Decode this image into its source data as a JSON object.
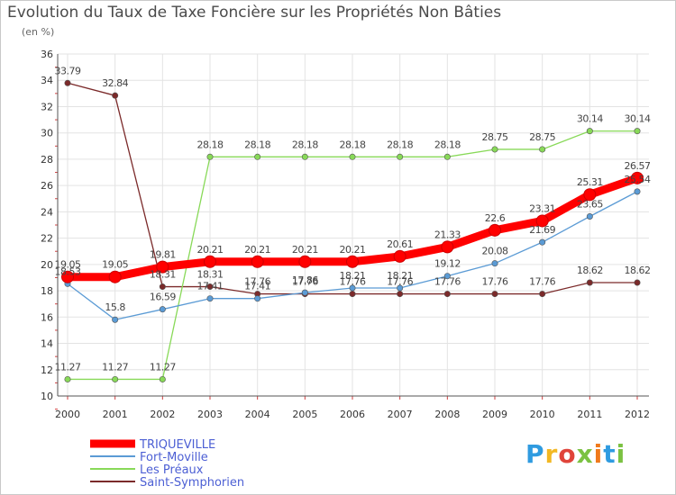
{
  "chart_data": {
    "type": "line",
    "title": "Evolution du Taux de Taxe Foncière sur les Propriétés Non Bâties",
    "ylabel": "(en %)",
    "xlabel": "",
    "categories": [
      "2000",
      "2001",
      "2002",
      "2003",
      "2004",
      "2005",
      "2006",
      "2007",
      "2008",
      "2009",
      "2010",
      "2011",
      "2012"
    ],
    "yticks": [
      "10",
      "12",
      "14",
      "16",
      "18",
      "20",
      "22",
      "24",
      "26",
      "28",
      "30",
      "32",
      "34",
      "36"
    ],
    "ylim": [
      10,
      36
    ],
    "grid": true,
    "legend_position": "bottom-left",
    "series": [
      {
        "name": "TRIQUEVILLE",
        "color": "#ff0000",
        "values": [
          19.05,
          19.05,
          19.81,
          20.21,
          20.21,
          20.21,
          20.21,
          20.61,
          21.33,
          22.6,
          23.31,
          25.31,
          26.57
        ],
        "labels": [
          "19.05",
          "19.05",
          "19.81",
          "20.21",
          "20.21",
          "20.21",
          "20.21",
          "20.61",
          "21.33",
          "22.6",
          "23.31",
          "25.31",
          "26.57"
        ]
      },
      {
        "name": "Fort-Moville",
        "color": "#5b9bd5",
        "values": [
          18.53,
          15.8,
          16.59,
          17.41,
          17.41,
          17.86,
          18.21,
          18.21,
          19.12,
          20.08,
          21.69,
          23.65,
          25.54
        ],
        "labels": [
          "18.53",
          "15.8",
          "16.59",
          "17.41",
          "17.41",
          "17.86",
          "18.21",
          "18.21",
          "19.12",
          "20.08",
          "21.69",
          "23.65",
          "25.54"
        ]
      },
      {
        "name": "Les Préaux",
        "color": "#88d958",
        "values": [
          11.27,
          11.27,
          11.27,
          28.18,
          28.18,
          28.18,
          28.18,
          28.18,
          28.18,
          28.75,
          28.75,
          30.14,
          30.14
        ],
        "labels": [
          "11.27",
          "11.27",
          "11.27",
          "28.18",
          "28.18",
          "28.18",
          "28.18",
          "28.18",
          "28.18",
          "28.75",
          "28.75",
          "30.14",
          "30.14"
        ]
      },
      {
        "name": "Saint-Symphorien",
        "color": "#7b2a2a",
        "values": [
          33.79,
          32.84,
          18.31,
          18.31,
          17.76,
          17.76,
          17.76,
          17.76,
          17.76,
          17.76,
          17.76,
          18.62,
          18.62
        ],
        "labels": [
          "33.79",
          "32.84",
          "18.31",
          "18.31",
          "17.76",
          "17.76",
          "17.76",
          "17.76",
          "17.76",
          "17.76",
          "17.76",
          "18.62",
          "18.62"
        ]
      }
    ],
    "legend_text_color": "#4c5fd4",
    "logo_text": "Proxiti"
  }
}
